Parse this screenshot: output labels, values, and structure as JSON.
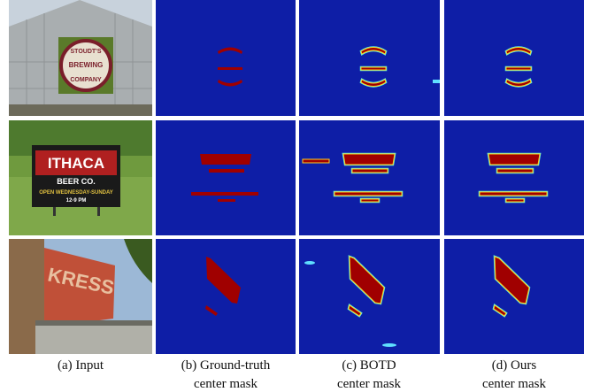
{
  "inputs": [
    {
      "sign_lines": [
        "STOUDT'S",
        "BREWING",
        "COMPANY"
      ]
    },
    {
      "sign_lines": [
        "ITHACA",
        "BEER CO.",
        "OPEN WEDNESDAY-SUNDAY",
        "12-9 PM"
      ]
    },
    {
      "sign_lines": [
        "KRESS"
      ]
    }
  ],
  "captions": [
    {
      "lines": [
        "(a) Input"
      ]
    },
    {
      "lines": [
        "(b) Ground-truth",
        "center mask"
      ]
    },
    {
      "lines": [
        "(c) BOTD",
        "center mask"
      ]
    },
    {
      "lines": [
        "(d) Ours",
        "center mask"
      ]
    }
  ]
}
